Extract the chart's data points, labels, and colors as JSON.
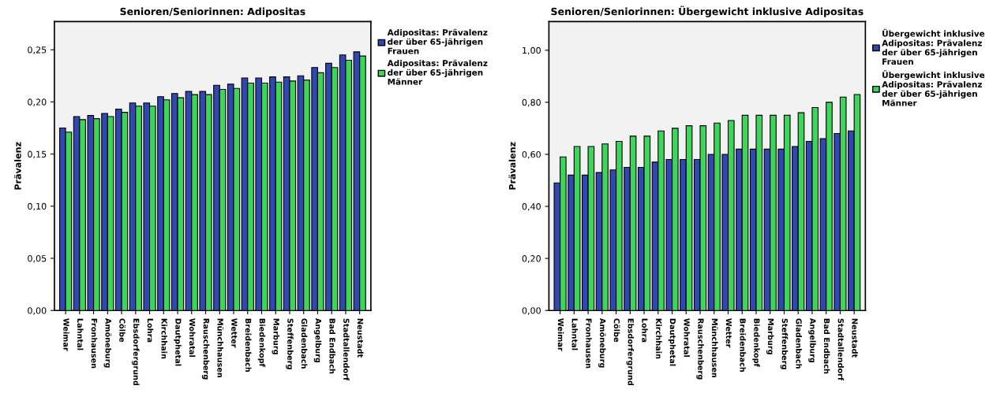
{
  "chart_data": [
    {
      "type": "bar",
      "title": "Senioren/Seniorinnen: Adipositas",
      "ylabel": "Prävalenz",
      "categories": [
        "Weimar",
        "Lahntal",
        "Fronhausen",
        "Amöneburg",
        "Cölbe",
        "Ebsdorfergrund",
        "Lohra",
        "Kirchhain",
        "Dautphetal",
        "Wohratal",
        "Rauschenberg",
        "Münchhausen",
        "Wetter",
        "Breidenbach",
        "Biedenkopf",
        "Marburg",
        "Steffenberg",
        "Gladenbach",
        "Angelburg",
        "Bad Endbach",
        "Stadtallendorf",
        "Neustadt"
      ],
      "series": [
        {
          "name": "Adipositas: Prävalenz der über 65-jährigen Frauen",
          "color": "#2f48b2",
          "values": [
            0.175,
            0.186,
            0.187,
            0.189,
            0.193,
            0.199,
            0.199,
            0.205,
            0.208,
            0.21,
            0.21,
            0.216,
            0.217,
            0.223,
            0.223,
            0.224,
            0.224,
            0.225,
            0.233,
            0.237,
            0.245,
            0.248
          ]
        },
        {
          "name": "Adipositas: Prävalenz der über 65-jährigen Männer",
          "color": "#3dd65a",
          "values": [
            0.171,
            0.183,
            0.184,
            0.186,
            0.19,
            0.196,
            0.196,
            0.202,
            0.204,
            0.207,
            0.207,
            0.212,
            0.213,
            0.218,
            0.218,
            0.219,
            0.22,
            0.221,
            0.228,
            0.233,
            0.24,
            0.244
          ]
        }
      ],
      "ylim": [
        0,
        0.277
      ],
      "yticks": [
        {
          "value": 0,
          "label": "0,00"
        },
        {
          "value": 0.05,
          "label": "0,05"
        },
        {
          "value": 0.1,
          "label": "0,10"
        },
        {
          "value": 0.15,
          "label": "0,15"
        },
        {
          "value": 0.2,
          "label": "0,20"
        },
        {
          "value": 0.25,
          "label": "0,25"
        }
      ],
      "grid": false,
      "legend": "right"
    },
    {
      "type": "bar",
      "title": "Senioren/Seniorinnen: Übergewicht inklusive Adipositas",
      "ylabel": "Prävalenz",
      "categories": [
        "Weimar",
        "Lahntal",
        "Fronhausen",
        "Amöneburg",
        "Cölbe",
        "Ebsdorfergrund",
        "Lohra",
        "Kirchhain",
        "Dautphetal",
        "Wohratal",
        "Rauschenberg",
        "Münchhausen",
        "Wetter",
        "Breidenbach",
        "Biedenkopf",
        "Marburg",
        "Steffenberg",
        "Gladenbach",
        "Angelburg",
        "Bad Endbach",
        "Stadtallendorf",
        "Neustadt"
      ],
      "series": [
        {
          "name": "Übergewicht inklusive Adipositas: Prävalenz der über 65-jährigen Frauen",
          "color": "#2f48b2",
          "values": [
            0.49,
            0.52,
            0.52,
            0.53,
            0.54,
            0.55,
            0.55,
            0.57,
            0.58,
            0.58,
            0.58,
            0.6,
            0.6,
            0.62,
            0.62,
            0.62,
            0.62,
            0.63,
            0.65,
            0.66,
            0.68,
            0.69
          ]
        },
        {
          "name": "Übergewicht inklusive Adipositas: Prävalenz der über 65-jährigen Männer",
          "color": "#3dd65a",
          "values": [
            0.59,
            0.63,
            0.63,
            0.64,
            0.65,
            0.67,
            0.67,
            0.69,
            0.7,
            0.71,
            0.71,
            0.72,
            0.73,
            0.75,
            0.75,
            0.75,
            0.75,
            0.76,
            0.78,
            0.8,
            0.82,
            0.83
          ]
        }
      ],
      "ylim": [
        0,
        1.11
      ],
      "yticks": [
        {
          "value": 0,
          "label": "0,00"
        },
        {
          "value": 0.2,
          "label": "0,20"
        },
        {
          "value": 0.4,
          "label": "0,40"
        },
        {
          "value": 0.6,
          "label": "0,60"
        },
        {
          "value": 0.8,
          "label": "0,80"
        },
        {
          "value": 1.0,
          "label": "1,00"
        }
      ],
      "grid": false,
      "legend": "right"
    }
  ]
}
